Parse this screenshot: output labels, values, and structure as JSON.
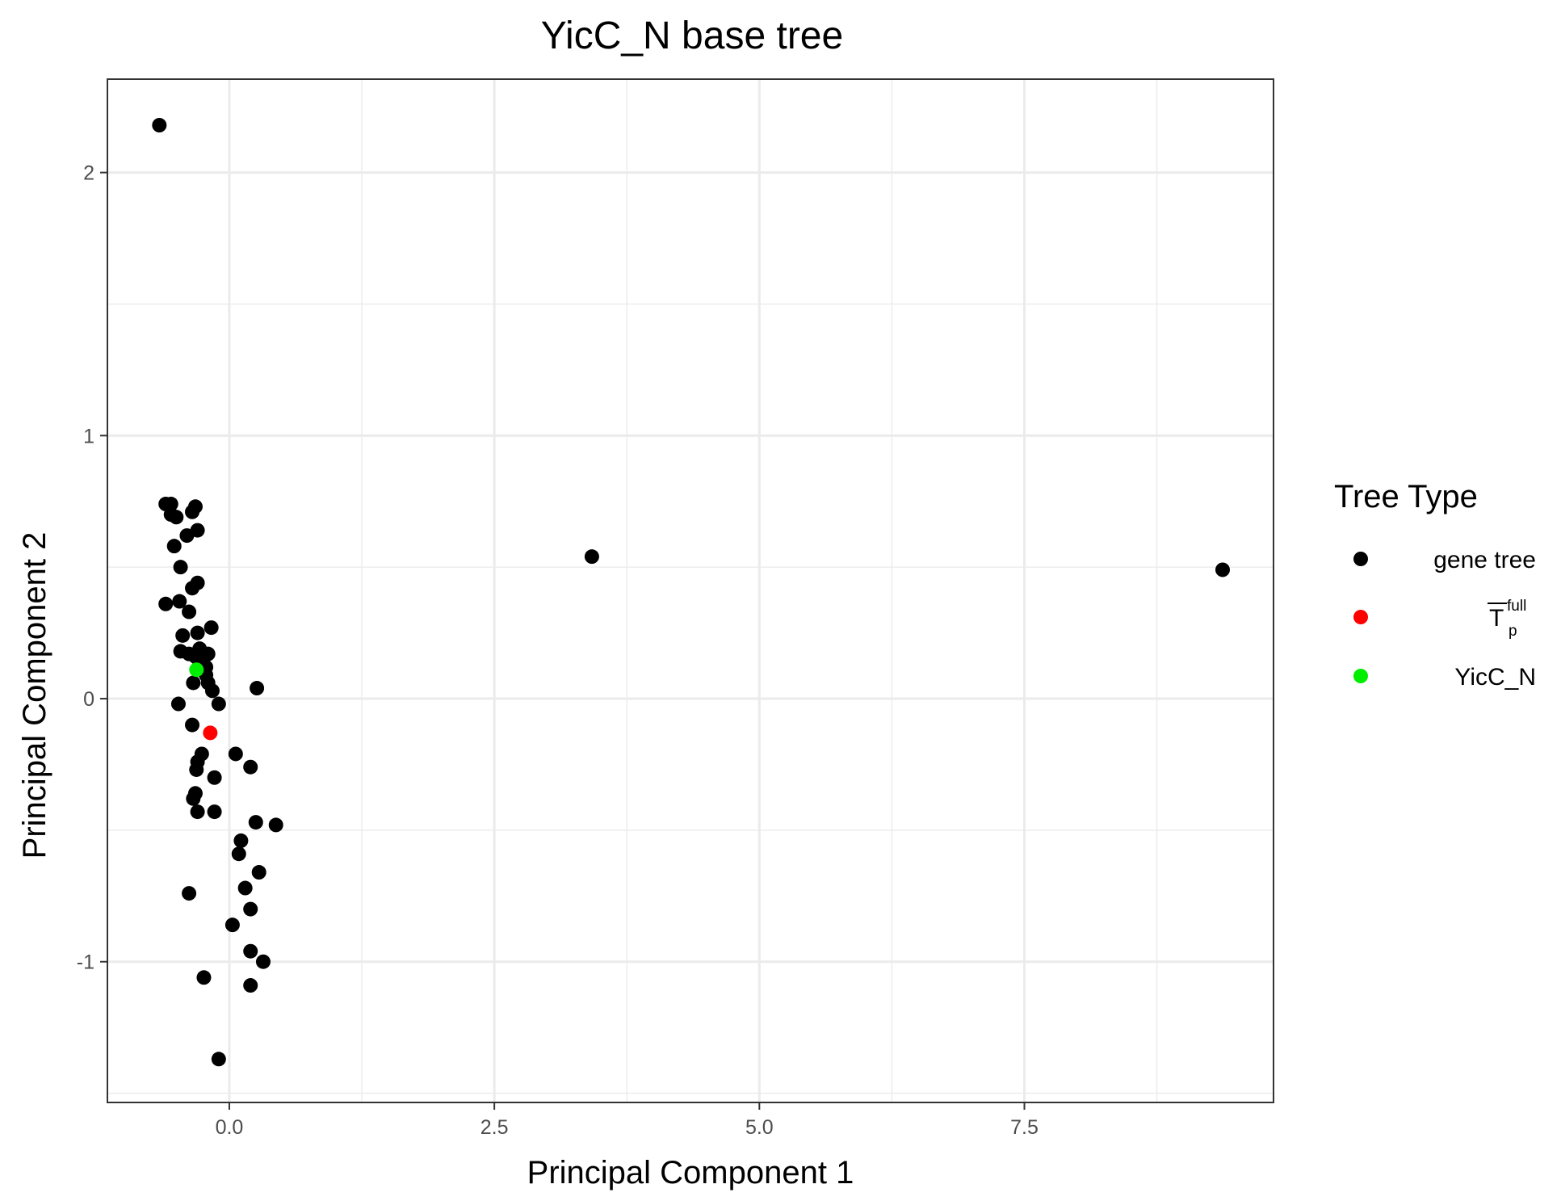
{
  "chart_data": {
    "type": "scatter",
    "title": "YicC_N base tree",
    "xlabel": "Principal Component 1",
    "ylabel": "Principal Component 2",
    "xlim": [
      -1.15,
      9.85
    ],
    "ylim": [
      -1.535,
      2.355
    ],
    "x_ticks": [
      0.0,
      2.5,
      5.0,
      7.5
    ],
    "x_tick_labels": [
      "0.0",
      "2.5",
      "5.0",
      "7.5"
    ],
    "x_minor": [
      1.25,
      3.75,
      6.25,
      8.75
    ],
    "y_ticks": [
      -1,
      0,
      1,
      2
    ],
    "y_tick_labels": [
      "-1",
      "0",
      "1",
      "2"
    ],
    "y_minor": [
      -1.5,
      -0.5,
      0.5,
      1.5
    ],
    "grid": true,
    "legend": {
      "title": "Tree Type",
      "position": "right",
      "entries": [
        {
          "label": "gene tree",
          "color": "#000000"
        },
        {
          "label": "T",
          "sup": "full",
          "sub": "p",
          "color": "#ff0000"
        },
        {
          "label": "YicC_N",
          "color": "#00ee00"
        }
      ]
    },
    "series": [
      {
        "name": "gene tree",
        "color": "#000000",
        "points": [
          [
            -0.66,
            2.18
          ],
          [
            -0.6,
            0.74
          ],
          [
            -0.55,
            0.74
          ],
          [
            -0.55,
            0.7
          ],
          [
            -0.5,
            0.69
          ],
          [
            -0.32,
            0.73
          ],
          [
            -0.35,
            0.71
          ],
          [
            -0.3,
            0.64
          ],
          [
            -0.4,
            0.62
          ],
          [
            -0.52,
            0.58
          ],
          [
            -0.46,
            0.5
          ],
          [
            -0.3,
            0.44
          ],
          [
            -0.35,
            0.42
          ],
          [
            -0.47,
            0.37
          ],
          [
            -0.6,
            0.36
          ],
          [
            -0.38,
            0.33
          ],
          [
            -0.17,
            0.27
          ],
          [
            -0.44,
            0.24
          ],
          [
            -0.3,
            0.25
          ],
          [
            -0.46,
            0.18
          ],
          [
            -0.38,
            0.17
          ],
          [
            -0.28,
            0.19
          ],
          [
            -0.32,
            0.16
          ],
          [
            -0.24,
            0.16
          ],
          [
            -0.2,
            0.17
          ],
          [
            -0.28,
            0.13
          ],
          [
            -0.22,
            0.12
          ],
          [
            -0.22,
            0.09
          ],
          [
            -0.2,
            0.06
          ],
          [
            -0.34,
            0.06
          ],
          [
            -0.16,
            0.03
          ],
          [
            0.26,
            0.04
          ],
          [
            -0.48,
            -0.02
          ],
          [
            -0.1,
            -0.02
          ],
          [
            -0.35,
            -0.1
          ],
          [
            0.06,
            -0.21
          ],
          [
            -0.26,
            -0.21
          ],
          [
            -0.3,
            -0.24
          ],
          [
            -0.31,
            -0.27
          ],
          [
            0.2,
            -0.26
          ],
          [
            -0.14,
            -0.3
          ],
          [
            -0.32,
            -0.36
          ],
          [
            -0.34,
            -0.38
          ],
          [
            -0.3,
            -0.43
          ],
          [
            -0.14,
            -0.43
          ],
          [
            0.25,
            -0.47
          ],
          [
            0.44,
            -0.48
          ],
          [
            0.11,
            -0.54
          ],
          [
            0.09,
            -0.59
          ],
          [
            0.28,
            -0.66
          ],
          [
            0.15,
            -0.72
          ],
          [
            -0.38,
            -0.74
          ],
          [
            0.2,
            -0.8
          ],
          [
            0.03,
            -0.86
          ],
          [
            0.2,
            -0.96
          ],
          [
            0.32,
            -1.0
          ],
          [
            -0.24,
            -1.06
          ],
          [
            0.2,
            -1.09
          ],
          [
            -0.1,
            -1.37
          ],
          [
            3.42,
            0.54
          ],
          [
            9.37,
            0.49
          ]
        ]
      },
      {
        "name": "T",
        "color": "#ff0000",
        "points": [
          [
            -0.18,
            -0.13
          ]
        ]
      },
      {
        "name": "YicC_N",
        "color": "#00ee00",
        "points": [
          [
            -0.31,
            0.11
          ]
        ]
      }
    ]
  }
}
